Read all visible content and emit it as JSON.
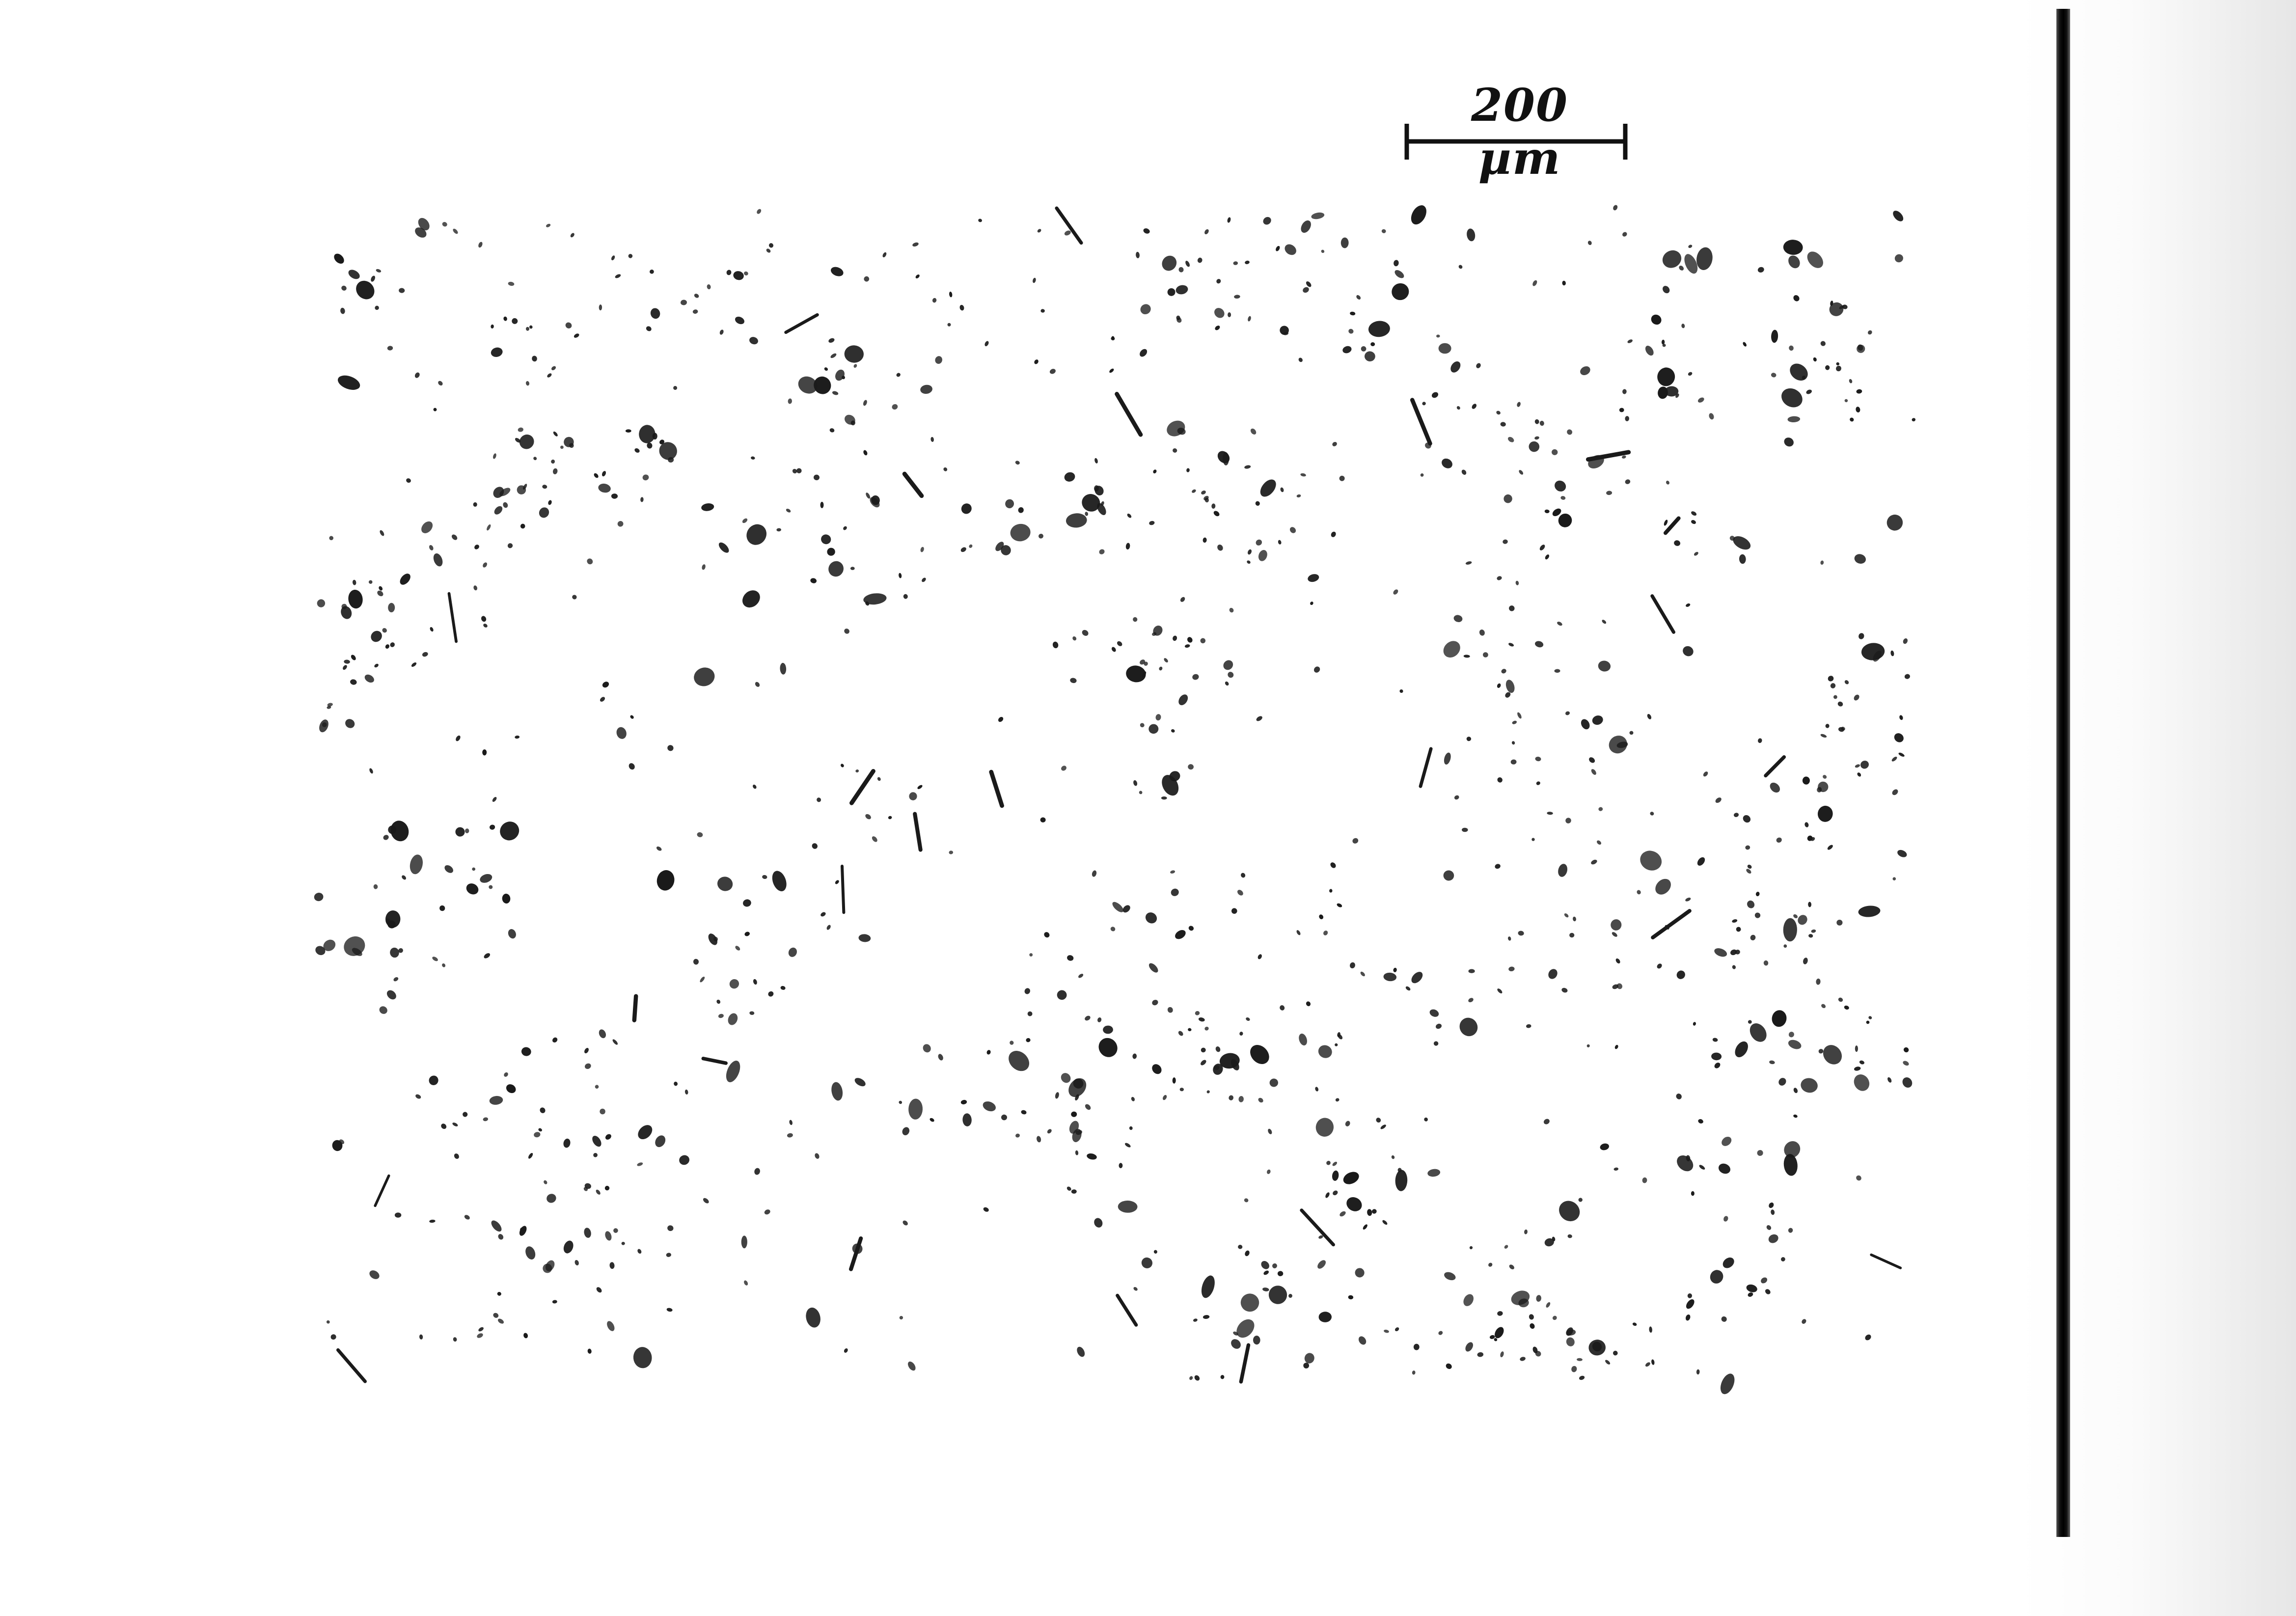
{
  "image": {
    "kind": "scanned micrograph of scattered dark particles on white paper",
    "colors": {
      "paper": "#ffffff",
      "particle": "#1a1a1a",
      "edge_line": "#000000"
    }
  },
  "scale_bar": {
    "label": "200 µm"
  }
}
